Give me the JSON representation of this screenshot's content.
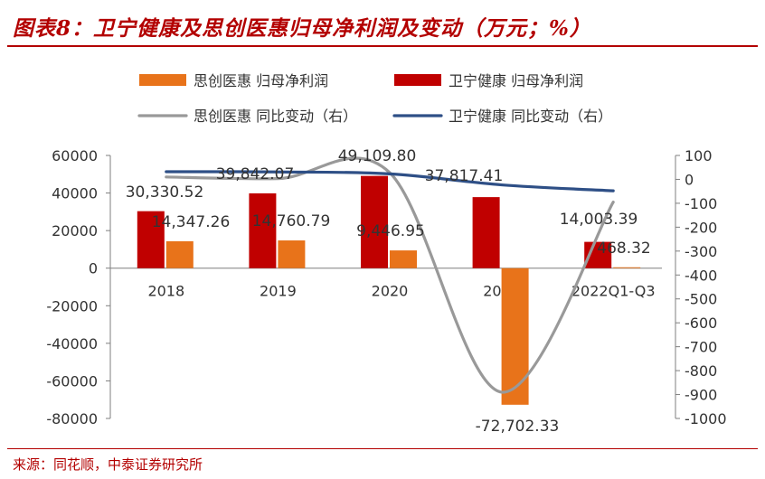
{
  "title": "图表8：卫宁健康及思创医惠归母净利润及变动（万元；%）",
  "source": "来源：同花顺，中泰证券研究所",
  "colors": {
    "sicai_bar": "#e8731a",
    "weining_bar": "#c00000",
    "sicai_line": "#999999",
    "weining_line": "#2e4f86",
    "brand": "#b30000"
  },
  "chart_data": {
    "type": "bar",
    "categories": [
      "2018",
      "2019",
      "2020",
      "2021",
      "2022Q1-Q3"
    ],
    "ylim_left": [
      -80000,
      60000
    ],
    "ylim_right": [
      -1000,
      100
    ],
    "left_ticks": [
      "60000",
      "40000",
      "20000",
      "0",
      "-20000",
      "-40000",
      "-60000",
      "-80000"
    ],
    "right_ticks": [
      "100",
      "0",
      "-100",
      "-200",
      "-300",
      "-400",
      "-500",
      "-600",
      "-700",
      "-800",
      "-900",
      "-1000"
    ],
    "legend_position": "top",
    "grid": false,
    "series": [
      {
        "name": "思创医惠 归母净利润",
        "kind": "bar",
        "axis": "left",
        "color_key": "sicai_bar",
        "values": [
          14347.26,
          14760.79,
          9446.95,
          -72702.33,
          468.32
        ],
        "labels": [
          "14,347.26",
          "14,760.79",
          "9,446.95",
          "-72,702.33",
          "468.32"
        ]
      },
      {
        "name": "卫宁健康 归母净利润",
        "kind": "bar",
        "axis": "left",
        "color_key": "weining_bar",
        "values": [
          30330.52,
          39842.07,
          49109.8,
          37817.41,
          14003.39
        ],
        "labels": [
          "30,330.52",
          "39,842.07",
          "49,109.80",
          "37,817.41",
          "14,003.39"
        ]
      },
      {
        "name": "思创医惠 同比变动（右）",
        "kind": "line",
        "axis": "right",
        "color_key": "sicai_line",
        "values": [
          10,
          3,
          28,
          -890,
          -95
        ]
      },
      {
        "name": "卫宁健康 同比变动（右）",
        "kind": "line",
        "axis": "right",
        "color_key": "weining_line",
        "values": [
          32,
          31,
          23,
          -23,
          -48
        ]
      }
    ]
  }
}
